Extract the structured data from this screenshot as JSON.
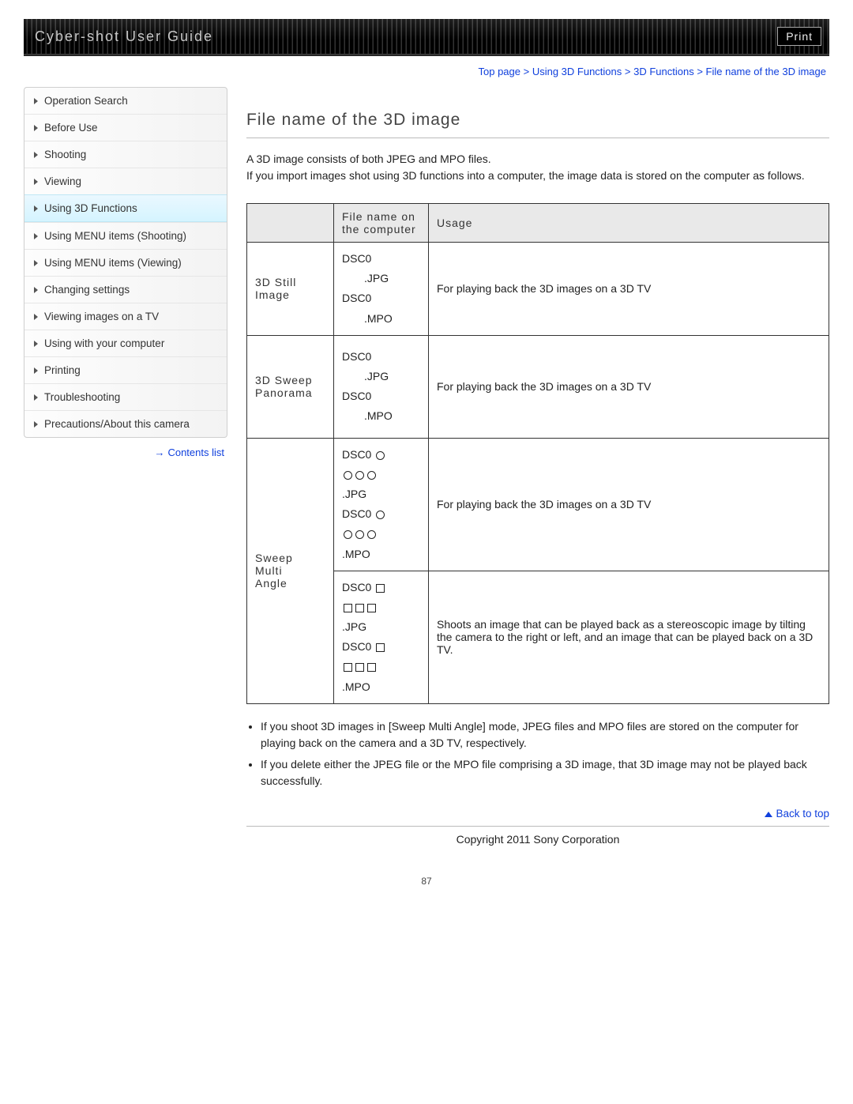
{
  "header": {
    "title": "Cyber-shot User Guide",
    "print_label": "Print"
  },
  "breadcrumb": {
    "items": [
      "Top page",
      "Using 3D Functions",
      "3D Functions",
      "File name of the 3D image"
    ]
  },
  "sidebar": {
    "items": [
      {
        "label": "Operation Search",
        "active": false
      },
      {
        "label": "Before Use",
        "active": false
      },
      {
        "label": "Shooting",
        "active": false
      },
      {
        "label": "Viewing",
        "active": false
      },
      {
        "label": "Using 3D Functions",
        "active": true
      },
      {
        "label": "Using MENU items (Shooting)",
        "active": false
      },
      {
        "label": "Using MENU items (Viewing)",
        "active": false
      },
      {
        "label": "Changing settings",
        "active": false
      },
      {
        "label": "Viewing images on a TV",
        "active": false
      },
      {
        "label": "Using with your computer",
        "active": false
      },
      {
        "label": "Printing",
        "active": false
      },
      {
        "label": "Troubleshooting",
        "active": false
      },
      {
        "label": "Precautions/About this camera",
        "active": false
      }
    ],
    "contents_label": "Contents list"
  },
  "main": {
    "title": "File name of the 3D image",
    "intro_line1": "A 3D image consists of both JPEG and MPO files.",
    "intro_line2": "If you import images shot using 3D functions into a computer, the image data is stored on the computer as follows.",
    "table": {
      "headers": {
        "col1": "",
        "col2": "File name on the computer",
        "col3": "Usage"
      },
      "rows": [
        {
          "label": "3D Still Image",
          "filecells": [
            {
              "lines": [
                "DSC0□□□□.JPG",
                "DSC0□□□□.MPO"
              ],
              "symbol": "none"
            }
          ],
          "usages": [
            "For playing back the 3D images on a 3D TV"
          ]
        },
        {
          "label": "3D Sweep Panorama",
          "filecells": [
            {
              "lines": [
                "DSC0□□□□.JPG",
                "DSC0□□□□.MPO"
              ],
              "symbol": "none",
              "tall": true
            }
          ],
          "usages": [
            "For playing back the 3D images on a 3D TV"
          ]
        },
        {
          "label": "Sweep Multi Angle",
          "filecells": [
            {
              "lines": [
                "DSC0 ○○○○.JPG",
                "DSC0 ○○○○.MPO"
              ],
              "symbol": "circle"
            },
            {
              "lines": [
                "DSC0 □□□□.JPG",
                "DSC0 □□□□.MPO"
              ],
              "symbol": "square"
            }
          ],
          "usages": [
            "For playing back the 3D images on a 3D TV",
            "Shoots an image that can be played back as a stereoscopic image by tilting the camera to the right or left, and an image that can be played back on a 3D TV."
          ]
        }
      ]
    },
    "notes": [
      "If you shoot 3D images in [Sweep Multi Angle] mode, JPEG files and MPO files are stored on the computer for playing back on the camera and a 3D TV, respectively.",
      "If you delete either the JPEG file or the MPO file comprising a 3D image, that 3D image may not be played back successfully."
    ],
    "back_label": "Back to top",
    "copyright": "Copyright 2011 Sony Corporation",
    "page_number": "87"
  }
}
